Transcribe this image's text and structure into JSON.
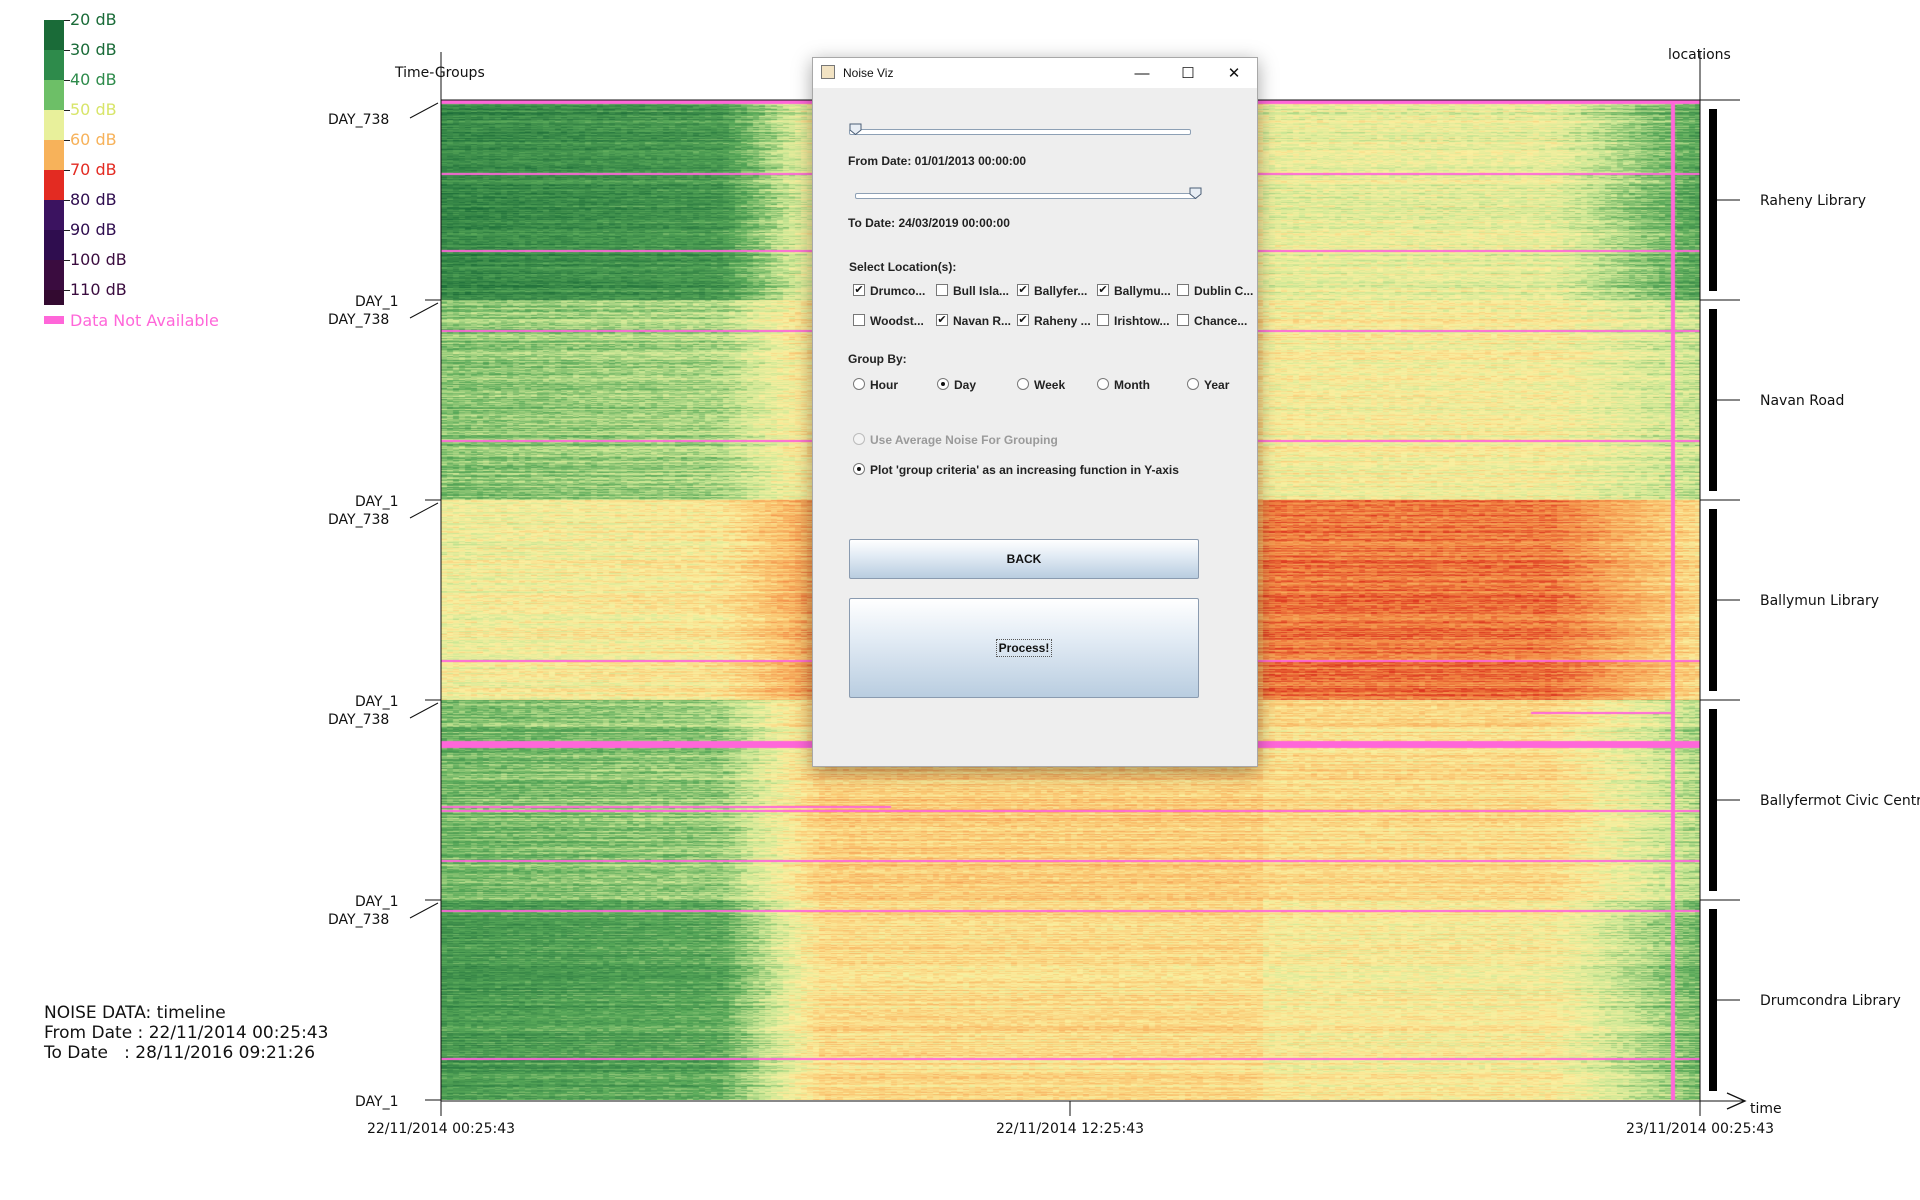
{
  "legend": {
    "bins": [
      {
        "label": "20 dB",
        "color": "#1a6b38"
      },
      {
        "label": "30 dB",
        "color": "#2e8b4b"
      },
      {
        "label": "40 dB",
        "color": "#6dbf67"
      },
      {
        "label": "50 dB",
        "color": "#e8f09b"
      },
      {
        "label": "60 dB",
        "color": "#f7b25a"
      },
      {
        "label": "70 dB",
        "color": "#e32b22"
      },
      {
        "label": "80 dB",
        "color": "#3b1360"
      },
      {
        "label": "90 dB",
        "color": "#2f0d4f"
      },
      {
        "label": "100 dB",
        "color": "#3a0c3f"
      },
      {
        "label": "110 dB",
        "color": "#330a30"
      }
    ],
    "label_colors": [
      "#1a6b38",
      "#1a6b38",
      "#2e8b4b",
      "#d8e56a",
      "#f7b25a",
      "#e32b22",
      "#2f0d4f",
      "#2f0d4f",
      "#3a0c3f",
      "#3a0c3f"
    ],
    "na_label": "Data Not Available",
    "na_color": "#ff66d9"
  },
  "axes": {
    "y_title": "Time-Groups",
    "right_title": "locations",
    "x_title": "time",
    "x_ticks": [
      "22/11/2014 00:25:43",
      "22/11/2014 12:25:43",
      "23/11/2014 00:25:43"
    ],
    "group_top_label": "DAY_738",
    "group_bottom_label": "DAY_1"
  },
  "locations": [
    "Raheny Library",
    "Navan Road",
    "Ballymun Library",
    "Ballyfermot Civic Centre",
    "Drumcondra Library"
  ],
  "info": {
    "line1": "NOISE DATA: timeline",
    "line2": "From Date : 22/11/2014 00:25:43",
    "line3": "To Date   : 28/11/2016 09:21:26"
  },
  "dialog": {
    "title": "Noise Viz",
    "minimize_glyph": "—",
    "maximize_glyph": "☐",
    "close_glyph": "✕",
    "from_date_label": "From Date: 01/01/2013 00:00:00",
    "to_date_label": "To Date: 24/03/2019 00:00:00",
    "from_slider_fraction": 0.0,
    "to_slider_fraction": 1.0,
    "select_locations_label": "Select Location(s):",
    "locations": [
      {
        "label": "Drumco...",
        "checked": true
      },
      {
        "label": "Bull Isla...",
        "checked": false
      },
      {
        "label": "Ballyfer...",
        "checked": true
      },
      {
        "label": "Ballymu...",
        "checked": true
      },
      {
        "label": "Dublin C...",
        "checked": false
      },
      {
        "label": "Woodst...",
        "checked": false
      },
      {
        "label": "Navan R...",
        "checked": true
      },
      {
        "label": "Raheny ...",
        "checked": true
      },
      {
        "label": "Irishtow...",
        "checked": false
      },
      {
        "label": "Chance...",
        "checked": false
      }
    ],
    "group_by_label": "Group By:",
    "group_by_options": [
      "Hour",
      "Day",
      "Week",
      "Month",
      "Year"
    ],
    "group_by_selected": "Day",
    "average_noise_label": "Use Average Noise For Grouping",
    "plot_criteria_label": "Plot 'group criteria' as an increasing function in Y-axis",
    "back_label": "BACK",
    "process_label": "Process!"
  }
}
